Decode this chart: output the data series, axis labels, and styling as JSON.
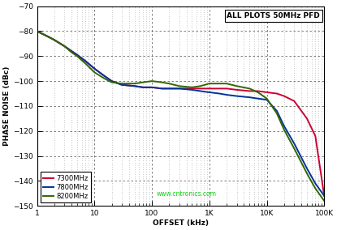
{
  "title_box": "ALL PLOTS 50MHz PFD",
  "xlabel": "OFFSET (kHz)",
  "ylabel": "PHASE NOISE (dBc)",
  "xlim": [
    1,
    100000
  ],
  "ylim": [
    -150,
    -70
  ],
  "yticks": [
    -150,
    -140,
    -130,
    -120,
    -110,
    -100,
    -90,
    -80,
    -70
  ],
  "background_color": "#ffffff",
  "lines": [
    {
      "label": "7300MHz",
      "color": "#cc0033",
      "x": [
        1,
        1.5,
        2,
        3,
        4,
        5,
        7,
        10,
        15,
        20,
        30,
        50,
        70,
        100,
        150,
        200,
        300,
        500,
        700,
        1000,
        1500,
        2000,
        3000,
        5000,
        7000,
        10000,
        15000,
        20000,
        30000,
        50000,
        70000,
        100000
      ],
      "y": [
        -80,
        -82,
        -83.5,
        -86,
        -88,
        -89.5,
        -92,
        -95,
        -98,
        -100,
        -101.5,
        -102,
        -102.5,
        -102.5,
        -103,
        -103,
        -103,
        -103,
        -103,
        -103,
        -103,
        -103,
        -103.5,
        -104,
        -104,
        -104.5,
        -105,
        -106,
        -108,
        -115,
        -122,
        -146
      ]
    },
    {
      "label": "7800MHz",
      "color": "#003399",
      "x": [
        1,
        1.5,
        2,
        3,
        4,
        5,
        7,
        10,
        15,
        20,
        30,
        50,
        70,
        100,
        150,
        200,
        300,
        500,
        700,
        1000,
        1500,
        2000,
        3000,
        5000,
        7000,
        10000,
        15000,
        20000,
        30000,
        50000,
        70000,
        100000
      ],
      "y": [
        -80,
        -82,
        -83.5,
        -86,
        -88,
        -89.5,
        -92,
        -95,
        -98,
        -100,
        -101.5,
        -102,
        -102.5,
        -102.5,
        -103,
        -103,
        -103,
        -103.5,
        -104,
        -104.5,
        -105,
        -105.5,
        -106,
        -106.5,
        -107,
        -107.5,
        -112,
        -118,
        -125,
        -135,
        -141,
        -146
      ]
    },
    {
      "label": "8200MHz",
      "color": "#336600",
      "x": [
        1,
        1.5,
        2,
        3,
        4,
        5,
        7,
        10,
        15,
        20,
        30,
        50,
        70,
        100,
        150,
        200,
        300,
        500,
        700,
        1000,
        1500,
        2000,
        3000,
        5000,
        7000,
        10000,
        15000,
        20000,
        30000,
        50000,
        70000,
        100000
      ],
      "y": [
        -80,
        -82,
        -83.5,
        -86,
        -88.5,
        -90,
        -93,
        -96.5,
        -99,
        -100.5,
        -101,
        -101,
        -100.5,
        -100,
        -100.5,
        -101,
        -102,
        -102.5,
        -102,
        -101,
        -101,
        -101,
        -102,
        -103,
        -104.5,
        -107,
        -113,
        -119.5,
        -127,
        -137,
        -143,
        -148
      ]
    }
  ],
  "annotation_color": "#00cc00",
  "annotation_text": "www.cntronics.com",
  "grid_dash_color": "#444444",
  "figsize": [
    4.15,
    2.84
  ],
  "dpi": 100
}
